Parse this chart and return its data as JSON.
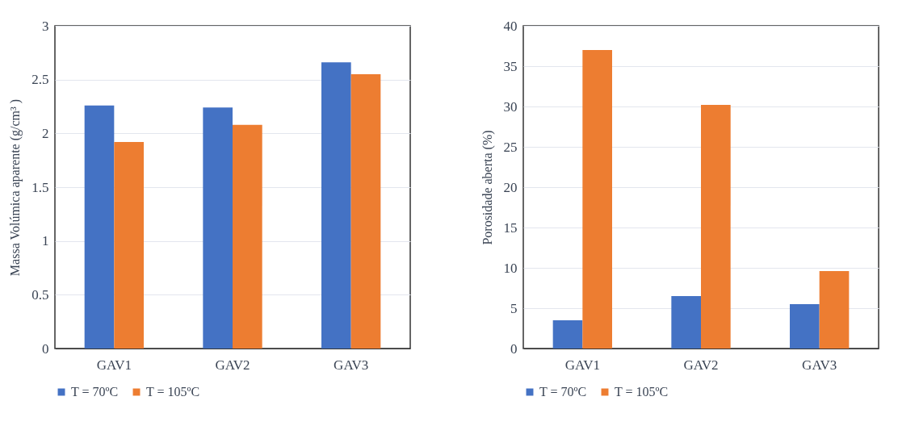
{
  "chart_data": [
    {
      "type": "bar",
      "ylabel": "Massa Volúmica aparente (g/cm³ )",
      "categories": [
        "GAV1",
        "GAV2",
        "GAV3"
      ],
      "series": [
        {
          "name": "T = 70ºC",
          "color": "#4472c4",
          "values": [
            2.26,
            2.24,
            2.66
          ]
        },
        {
          "name": "T = 105ºC",
          "color": "#ed7d31",
          "values": [
            1.92,
            2.08,
            2.55
          ]
        }
      ],
      "ylim": [
        0,
        3
      ],
      "yticks": [
        0,
        0.5,
        1,
        1.5,
        2,
        2.5,
        3
      ],
      "grid": "y",
      "legend": "bottom"
    },
    {
      "type": "bar",
      "ylabel": "Porosidade aberta (%)",
      "categories": [
        "GAV1",
        "GAV2",
        "GAV3"
      ],
      "series": [
        {
          "name": "T = 70ºC",
          "color": "#4472c4",
          "values": [
            3.5,
            6.5,
            5.5
          ]
        },
        {
          "name": "T = 105ºC",
          "color": "#ed7d31",
          "values": [
            37,
            30.2,
            9.6
          ]
        }
      ],
      "ylim": [
        0,
        40
      ],
      "yticks": [
        0,
        5,
        10,
        15,
        20,
        25,
        30,
        35,
        40
      ],
      "grid": "y",
      "legend": "bottom"
    }
  ]
}
